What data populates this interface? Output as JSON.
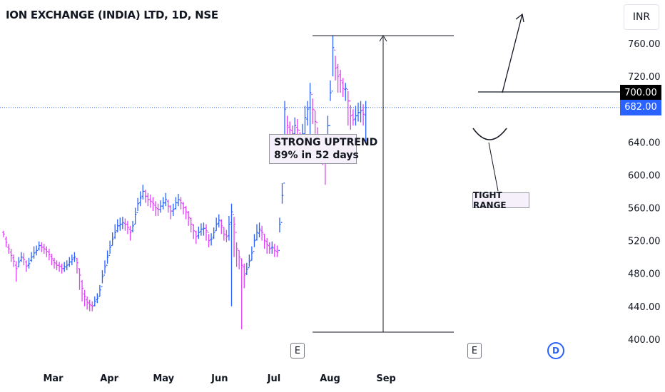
{
  "header": {
    "title": "ION EXCHANGE (INDIA) LTD, 1D, NSE",
    "currency": "INR"
  },
  "annotations": {
    "uptrend_line1": "STRONG UPTREND",
    "uptrend_line2": "89% in 52 days",
    "tight_range": "TIGHT RANGE"
  },
  "price_tags": {
    "level": "700.00",
    "last": "682.00"
  },
  "events": {
    "earnings_1": "E",
    "earnings_2": "E",
    "dividend": "D"
  },
  "colors": {
    "up": "#2962ff",
    "down": "#e040fb",
    "level_tag": "#000000",
    "last_tag": "#2962ff"
  },
  "chart_data": {
    "type": "ohlc",
    "ylim": [
      395,
      790
    ],
    "y_ticks": [
      "760.00",
      "720.00",
      "680.00",
      "640.00",
      "600.00",
      "560.00",
      "520.00",
      "480.00",
      "440.00",
      "400.00"
    ],
    "x_tick_labels": [
      "Mar",
      "Apr",
      "May",
      "Jun",
      "Jul",
      "Aug",
      "Sep"
    ],
    "x_start": "2024-02-01",
    "closes": [
      528,
      518,
      510,
      502,
      495,
      486,
      494,
      500,
      497,
      489,
      492,
      500,
      505,
      508,
      514,
      512,
      510,
      507,
      503,
      498,
      493,
      490,
      489,
      486,
      488,
      490,
      494,
      497,
      500,
      493,
      478,
      462,
      452,
      445,
      442,
      440,
      446,
      450,
      460,
      476,
      488,
      500,
      512,
      522,
      530,
      538,
      540,
      542,
      540,
      536,
      530,
      538,
      552,
      565,
      572,
      580,
      574,
      570,
      568,
      565,
      560,
      558,
      562,
      566,
      570,
      562,
      556,
      558,
      566,
      570,
      566,
      560,
      555,
      548,
      540,
      532,
      525,
      530,
      534,
      535,
      532,
      520,
      522,
      530,
      540,
      545,
      538,
      528,
      525,
      540,
      555,
      540,
      510,
      500,
      490,
      478,
      485,
      495,
      505,
      520,
      530,
      534,
      530,
      520,
      515,
      510,
      512,
      508,
      506,
      540,
      575,
      680,
      660,
      655,
      650,
      660,
      655,
      640,
      650,
      670,
      680,
      700,
      680,
      665,
      645,
      635,
      625,
      620,
      660,
      700,
      755,
      730,
      720,
      715,
      705,
      705,
      690,
      672,
      667,
      672,
      676,
      678,
      674,
      682
    ],
    "highs": [
      532,
      525,
      516,
      510,
      503,
      495,
      500,
      506,
      505,
      496,
      499,
      506,
      513,
      514,
      519,
      518,
      516,
      513,
      510,
      504,
      499,
      496,
      494,
      492,
      494,
      496,
      500,
      503,
      506,
      499,
      486,
      472,
      460,
      452,
      448,
      446,
      452,
      456,
      466,
      484,
      496,
      508,
      520,
      530,
      540,
      546,
      548,
      549,
      547,
      544,
      538,
      544,
      560,
      572,
      580,
      588,
      582,
      578,
      576,
      573,
      568,
      565,
      569,
      573,
      578,
      570,
      563,
      565,
      573,
      577,
      573,
      567,
      562,
      556,
      548,
      540,
      532,
      537,
      541,
      542,
      540,
      528,
      529,
      536,
      548,
      552,
      546,
      536,
      533,
      550,
      565,
      549,
      518,
      508,
      498,
      492,
      493,
      503,
      513,
      528,
      540,
      542,
      538,
      528,
      523,
      518,
      519,
      516,
      514,
      548,
      590,
      690,
      672,
      665,
      660,
      670,
      668,
      652,
      662,
      684,
      690,
      712,
      693,
      678,
      658,
      648,
      640,
      636,
      672,
      715,
      770,
      745,
      735,
      728,
      718,
      712,
      702,
      685,
      680,
      684,
      688,
      690,
      686,
      690
    ],
    "lows": [
      524,
      512,
      504,
      494,
      488,
      470,
      488,
      494,
      490,
      482,
      486,
      494,
      498,
      502,
      508,
      506,
      504,
      500,
      496,
      490,
      486,
      484,
      482,
      480,
      482,
      484,
      488,
      490,
      494,
      480,
      460,
      446,
      440,
      436,
      434,
      434,
      440,
      444,
      452,
      468,
      480,
      492,
      504,
      514,
      522,
      530,
      532,
      534,
      532,
      528,
      520,
      530,
      540,
      556,
      562,
      570,
      566,
      562,
      560,
      556,
      550,
      550,
      554,
      558,
      562,
      554,
      546,
      550,
      558,
      562,
      558,
      552,
      546,
      538,
      530,
      522,
      516,
      522,
      526,
      526,
      520,
      512,
      514,
      522,
      532,
      536,
      528,
      520,
      518,
      520,
      440,
      500,
      488,
      485,
      412,
      462,
      478,
      488,
      496,
      512,
      520,
      524,
      520,
      510,
      504,
      504,
      504,
      500,
      500,
      530,
      565,
      640,
      640,
      640,
      640,
      645,
      640,
      628,
      638,
      650,
      660,
      640,
      662,
      650,
      632,
      622,
      612,
      588,
      620,
      690,
      720,
      715,
      700,
      700,
      695,
      690,
      660,
      655,
      660,
      660,
      665,
      664,
      660,
      640
    ],
    "opens": [
      530,
      522,
      512,
      506,
      499,
      490,
      488,
      496,
      499,
      494,
      490,
      496,
      501,
      506,
      510,
      514,
      512,
      509,
      506,
      501,
      496,
      492,
      490,
      488,
      486,
      488,
      491,
      494,
      499,
      498,
      486,
      470,
      455,
      448,
      444,
      441,
      441,
      448,
      452,
      464,
      478,
      490,
      502,
      514,
      524,
      532,
      538,
      540,
      541,
      540,
      534,
      532,
      540,
      554,
      566,
      574,
      580,
      574,
      570,
      567,
      563,
      559,
      558,
      562,
      566,
      568,
      561,
      556,
      559,
      566,
      569,
      565,
      560,
      554,
      547,
      539,
      531,
      526,
      531,
      534,
      535,
      530,
      521,
      524,
      532,
      541,
      544,
      536,
      527,
      526,
      542,
      552,
      530,
      508,
      498,
      488,
      480,
      487,
      496,
      507,
      521,
      529,
      532,
      528,
      519,
      514,
      511,
      511,
      507,
      508,
      542,
      590,
      682,
      658,
      654,
      650,
      658,
      654,
      642,
      650,
      668,
      682,
      698,
      679,
      664,
      646,
      636,
      626,
      622,
      660,
      702,
      752,
      731,
      722,
      712,
      704,
      704,
      690,
      673,
      668,
      672,
      676,
      679,
      673
    ]
  }
}
